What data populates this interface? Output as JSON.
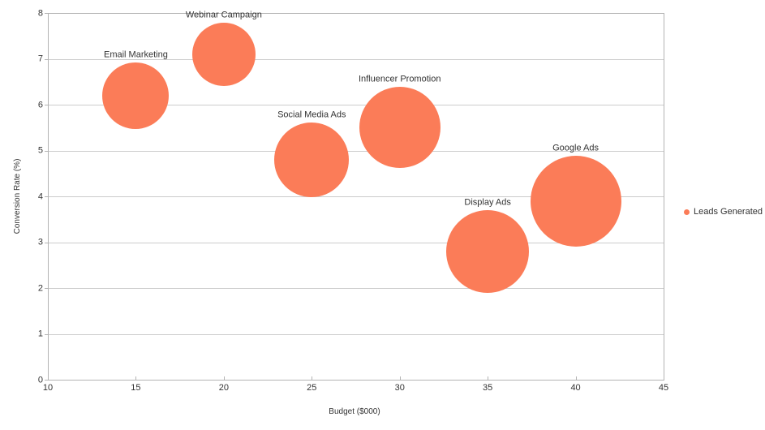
{
  "chart": {
    "colors": {
      "bubble": "#FB7C58",
      "grid": "#cccccc",
      "axis": "#b3b3b3",
      "text": "#333333",
      "background": "#ffffff"
    },
    "legend": {
      "label": "Leads Generated"
    }
  },
  "chart_data": {
    "type": "scatter",
    "subtype": "bubble",
    "title": "",
    "xlabel": "Budget ($000)",
    "ylabel": "Conversion Rate (%)",
    "xlim": [
      10,
      45
    ],
    "ylim": [
      0,
      8
    ],
    "x_ticks": [
      10,
      15,
      20,
      25,
      30,
      35,
      40,
      45
    ],
    "y_ticks": [
      0,
      1,
      2,
      3,
      4,
      5,
      6,
      7,
      8
    ],
    "grid": "horizontal-only",
    "legend_position": "right-middle",
    "series": [
      {
        "name": "Leads Generated",
        "color": "#FB7C58",
        "points": [
          {
            "label": "Email Marketing",
            "x": 15,
            "y": 6.2,
            "radius_px": 41
          },
          {
            "label": "Webinar Campaign",
            "x": 20,
            "y": 7.1,
            "radius_px": 39
          },
          {
            "label": "Social Media Ads",
            "x": 25,
            "y": 4.8,
            "radius_px": 46
          },
          {
            "label": "Influencer Promotion",
            "x": 30,
            "y": 5.5,
            "radius_px": 50
          },
          {
            "label": "Display Ads",
            "x": 35,
            "y": 2.8,
            "radius_px": 51
          },
          {
            "label": "Google Ads",
            "x": 40,
            "y": 3.9,
            "radius_px": 56
          }
        ]
      }
    ]
  }
}
